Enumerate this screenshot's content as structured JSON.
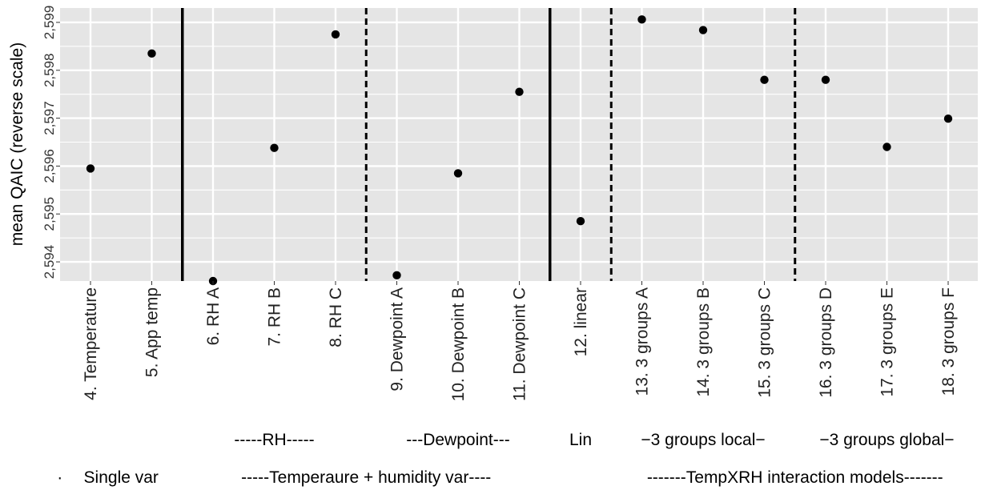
{
  "chart_data": {
    "type": "scatter",
    "ylabel": "mean QAIC (reverse scale)",
    "y_reversed": true,
    "ylim": [
      2599.3,
      2593.6
    ],
    "yticks": [
      2594,
      2595,
      2596,
      2597,
      2598,
      2599
    ],
    "ytick_labels": [
      "2,594",
      "2,595",
      "2,596",
      "2,597",
      "2,598",
      "2,599"
    ],
    "grid": true,
    "categories": [
      "4. Temperature",
      "5. App temp",
      "6. RH A",
      "7. RH B",
      "8. RH C",
      "9. Dewpoint A",
      "10. Dewpoint B",
      "11. Dewpoint C",
      "12. linear",
      "13. 3 groups A",
      "14. 3 groups B",
      "15. 3 groups C",
      "16. 3 groups D",
      "17. 3 groups E",
      "18. 3 groups F"
    ],
    "values": [
      2595.95,
      2598.35,
      2593.6,
      2596.38,
      2598.75,
      2593.72,
      2595.85,
      2597.55,
      2594.85,
      2599.06,
      2598.84,
      2597.8,
      2597.8,
      2596.4,
      2596.99
    ],
    "separators": [
      {
        "after_index": 1,
        "style": "solid"
      },
      {
        "after_index": 4,
        "style": "dashed"
      },
      {
        "after_index": 7,
        "style": "solid"
      },
      {
        "after_index": 8,
        "style": "dashed"
      },
      {
        "after_index": 11,
        "style": "dashed"
      }
    ],
    "subgroup_labels": [
      {
        "text": "-----RH-----",
        "center_index": 3
      },
      {
        "text": "---Dewpoint---",
        "center_index": 6
      },
      {
        "text": "Lin",
        "center_index": 8
      },
      {
        "text": "−3 groups local−",
        "center_index": 10
      },
      {
        "text": "−3 groups global−",
        "center_index": 13
      }
    ],
    "group_labels": [
      {
        "text": "·",
        "center_index": -0.5
      },
      {
        "text": "Single var",
        "center_index": 0.5
      },
      {
        "text": "-----Temperaure + humidity var----",
        "center_index": 4.5
      },
      {
        "text": "-------TempXRH interaction models-------",
        "center_index": 11.5
      }
    ],
    "colors": {
      "panel": "#e5e5e5",
      "grid": "#ffffff",
      "point": "#000000"
    }
  }
}
